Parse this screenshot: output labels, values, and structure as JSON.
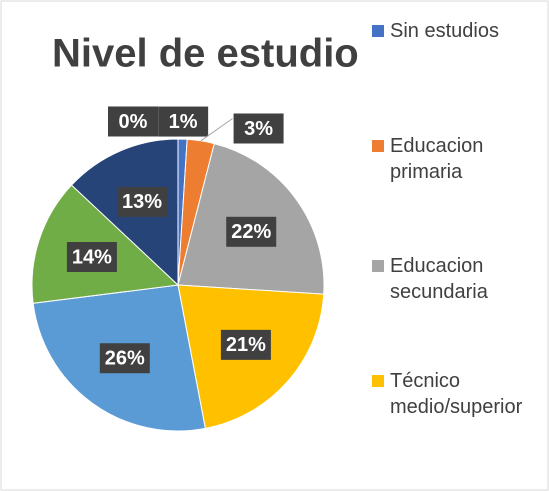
{
  "chart_data": {
    "type": "pie",
    "title": "Nivel de estudio",
    "categories": [
      "Sin estudios",
      "Educacion primaria",
      "Educacion secundaria",
      "Técnico medio/superior",
      null,
      null,
      null,
      null
    ],
    "values": [
      1,
      3,
      22,
      21,
      26,
      14,
      13,
      0
    ],
    "value_labels": [
      "1%",
      "3%",
      "22%",
      "21%",
      "26%",
      "14%",
      "13%",
      "0%"
    ],
    "colors": [
      "#4472c4",
      "#ed7d31",
      "#a5a5a5",
      "#ffc000",
      "#5b9bd5",
      "#70ad47",
      "#264478",
      "#9e480e"
    ],
    "legend": "right"
  }
}
